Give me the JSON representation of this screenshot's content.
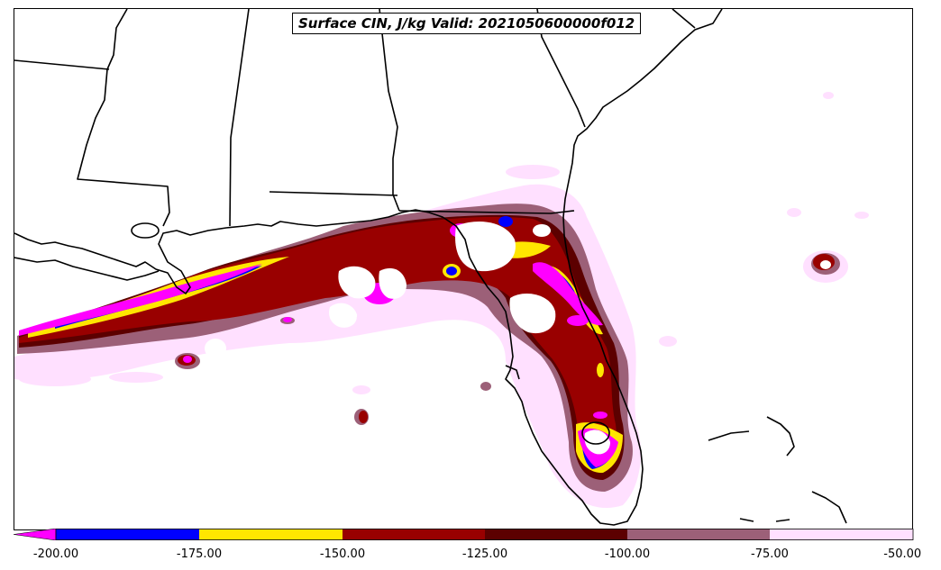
{
  "title": "Surface CIN, J/kg Valid: 2021050600000f012",
  "colorbar": {
    "ticks": [
      "-200.00",
      "-175.00",
      "-150.00",
      "-125.00",
      "-100.00",
      "-75.00",
      "-50.00"
    ],
    "extend_color": "#ff00ff",
    "colors": [
      "#0000ff",
      "#ffe600",
      "#990000",
      "#5c0000",
      "#9c6078",
      "#ffe0ff"
    ]
  },
  "legend_levels": [
    {
      "range": "< -200",
      "color": "#ff00ff"
    },
    {
      "range": "-200 to -175",
      "color": "#0000ff"
    },
    {
      "range": "-175 to -150",
      "color": "#ffe600"
    },
    {
      "range": "-150 to -125",
      "color": "#990000"
    },
    {
      "range": "-125 to -100",
      "color": "#5c0000"
    },
    {
      "range": "-100 to -75",
      "color": "#9c6078"
    },
    {
      "range": "-75 to -50",
      "color": "#ffe0ff"
    }
  ]
}
